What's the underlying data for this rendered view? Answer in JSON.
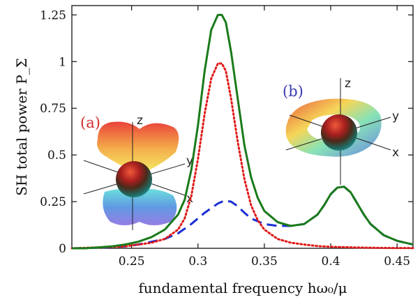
{
  "chart_data": {
    "type": "line",
    "xlabel": "fundamental frequency hω₀/μ",
    "ylabel": "SH total power P_Σ",
    "xlim": [
      0.205,
      0.462
    ],
    "ylim": [
      0,
      1.3
    ],
    "xticks": [
      "0.25",
      "0.3",
      "0.35",
      "0.4",
      "0.45"
    ],
    "yticks": [
      "0",
      "0.25",
      "0.5",
      "0.75",
      "1",
      "1.25"
    ],
    "grid": false,
    "legend": "none",
    "series": [
      {
        "style": "solid",
        "color": "#1a7a1a",
        "x": [
          0.205,
          0.215,
          0.225,
          0.235,
          0.245,
          0.255,
          0.265,
          0.275,
          0.285,
          0.29,
          0.295,
          0.3,
          0.305,
          0.31,
          0.315,
          0.318,
          0.321,
          0.325,
          0.33,
          0.335,
          0.34,
          0.345,
          0.35,
          0.36,
          0.37,
          0.38,
          0.39,
          0.395,
          0.4,
          0.405,
          0.41,
          0.415,
          0.42,
          0.425,
          0.43,
          0.44,
          0.45,
          0.462
        ],
        "y": [
          0.0,
          0.0,
          0.005,
          0.01,
          0.02,
          0.035,
          0.06,
          0.1,
          0.18,
          0.26,
          0.42,
          0.66,
          0.95,
          1.17,
          1.25,
          1.25,
          1.21,
          1.05,
          0.8,
          0.55,
          0.38,
          0.27,
          0.2,
          0.14,
          0.12,
          0.13,
          0.18,
          0.23,
          0.29,
          0.325,
          0.33,
          0.3,
          0.24,
          0.18,
          0.13,
          0.07,
          0.04,
          0.02
        ]
      },
      {
        "style": "dotted",
        "color": "#e01a1a",
        "x": [
          0.205,
          0.225,
          0.245,
          0.255,
          0.265,
          0.275,
          0.285,
          0.29,
          0.295,
          0.3,
          0.305,
          0.31,
          0.315,
          0.318,
          0.321,
          0.325,
          0.33,
          0.335,
          0.34,
          0.345,
          0.35,
          0.36,
          0.37,
          0.38,
          0.39,
          0.4,
          0.42,
          0.44,
          0.462
        ],
        "y": [
          0.0,
          0.005,
          0.01,
          0.02,
          0.03,
          0.05,
          0.1,
          0.16,
          0.28,
          0.48,
          0.72,
          0.91,
          0.99,
          0.99,
          0.95,
          0.8,
          0.57,
          0.37,
          0.23,
          0.15,
          0.1,
          0.05,
          0.03,
          0.02,
          0.012,
          0.008,
          0.004,
          0.002,
          0.001
        ]
      },
      {
        "style": "dashed",
        "color": "#1a2fd6",
        "x": [
          0.205,
          0.225,
          0.245,
          0.255,
          0.265,
          0.275,
          0.285,
          0.295,
          0.305,
          0.315,
          0.32,
          0.325,
          0.33,
          0.335,
          0.34,
          0.35,
          0.36,
          0.37,
          0.38,
          0.39,
          0.395,
          0.4,
          0.405,
          0.41,
          0.415,
          0.42,
          0.425,
          0.43,
          0.44,
          0.45,
          0.462
        ],
        "y": [
          0.0,
          0.003,
          0.01,
          0.02,
          0.035,
          0.05,
          0.08,
          0.13,
          0.19,
          0.24,
          0.255,
          0.25,
          0.225,
          0.19,
          0.16,
          0.13,
          0.12,
          0.12,
          0.13,
          0.18,
          0.23,
          0.29,
          0.325,
          0.33,
          0.3,
          0.24,
          0.18,
          0.13,
          0.07,
          0.04,
          0.02
        ]
      }
    ],
    "insets": [
      {
        "tag": "(a)",
        "tag_color": "#d42a2a",
        "axes": [
          "z",
          "y",
          "x"
        ]
      },
      {
        "tag": "(b)",
        "tag_color": "#3a3ab0",
        "axes": [
          "z",
          "y",
          "x"
        ]
      }
    ]
  }
}
